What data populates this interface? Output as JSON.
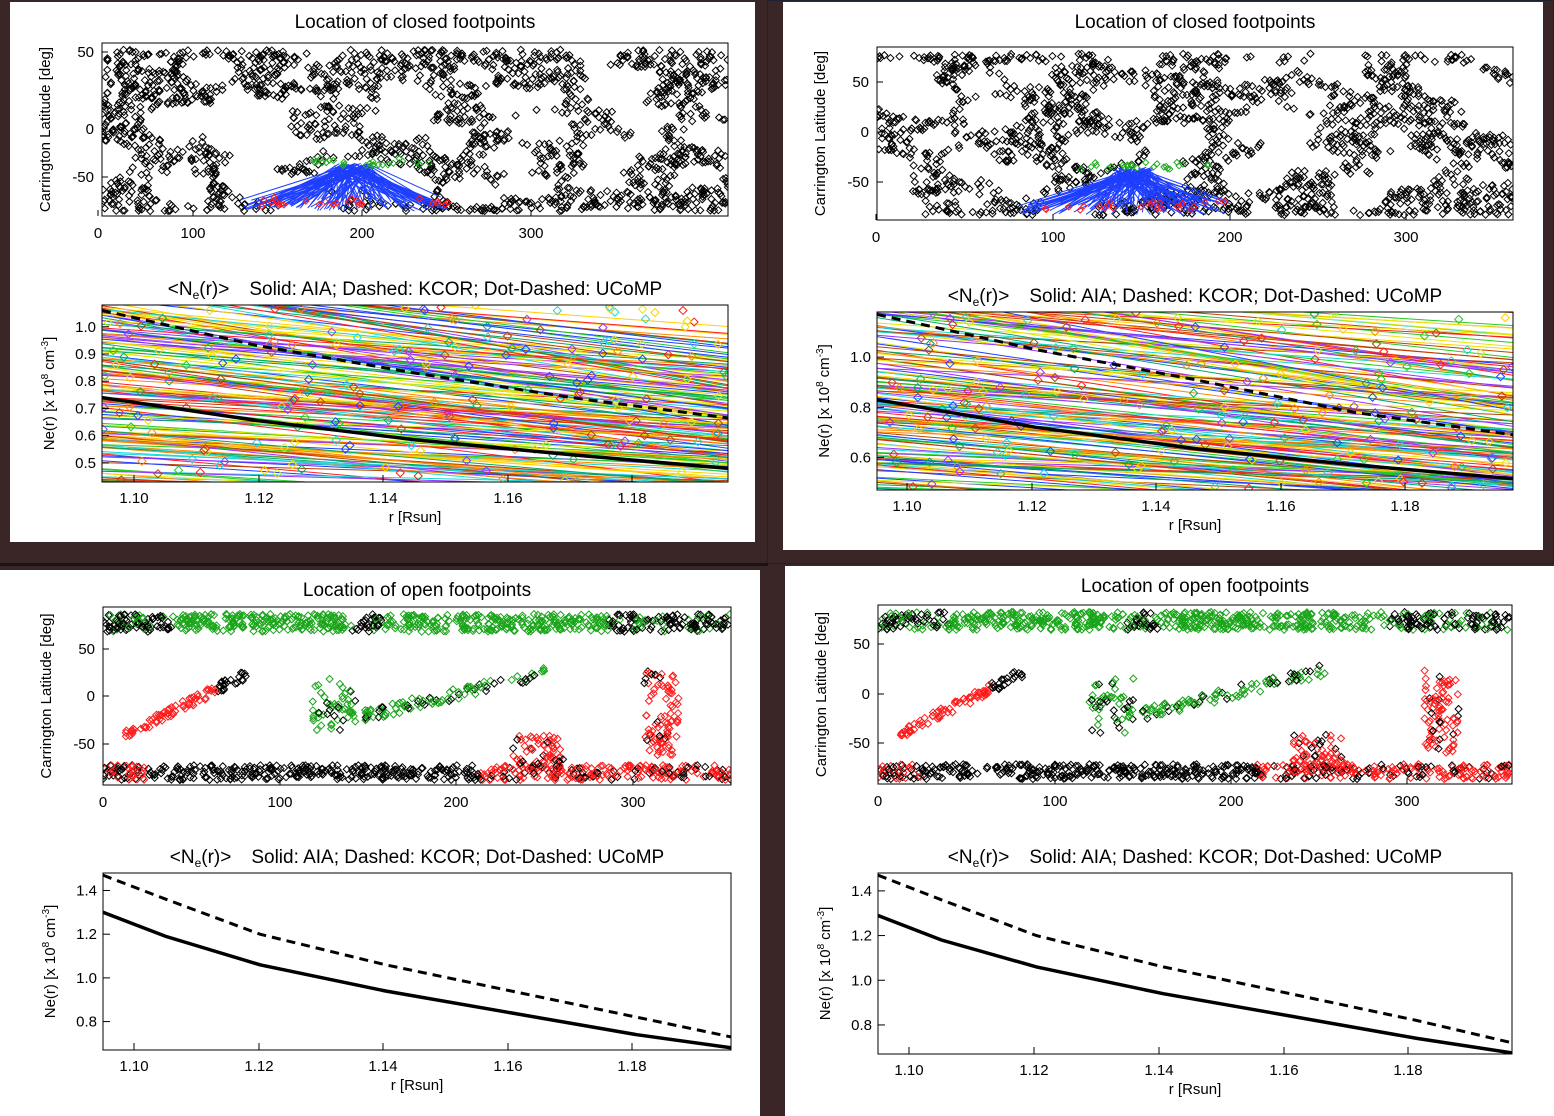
{
  "windows": [
    {
      "id": "top-left",
      "map": {
        "title": "Location of closed footpoints",
        "ylabel": "Carrington Latitude [deg]",
        "xticks": [
          "0",
          "100",
          "200",
          "300"
        ],
        "yticks": [
          "50",
          "0",
          "-50"
        ]
      },
      "profile": {
        "title_parts": [
          "<N",
          "e",
          "(r)>",
          "Solid: AIA; Dashed: KCOR; Dot-Dashed: UCoMP"
        ],
        "xlabel": "r [Rsun]",
        "ylabel_parts": [
          "Ne(r) [x 10",
          "8",
          "cm",
          "-3",
          "]"
        ],
        "xticks": [
          "1.10",
          "1.12",
          "1.14",
          "1.16",
          "1.18"
        ],
        "yticks": [
          "1.0",
          "0.9",
          "0.8",
          "0.7",
          "0.6",
          "0.5"
        ]
      }
    },
    {
      "id": "top-right",
      "map": {
        "title": "Location of closed footpoints",
        "ylabel": "Carrington Latitude [deg]",
        "xticks": [
          "0",
          "100",
          "200",
          "300"
        ],
        "yticks": [
          "50",
          "0",
          "-50"
        ]
      },
      "profile": {
        "title_parts": [
          "<N",
          "e",
          "(r)>",
          "Solid: AIA; Dashed: KCOR; Dot-Dashed: UCoMP"
        ],
        "xlabel": "r [Rsun]",
        "ylabel_parts": [
          "Ne(r) [x 10",
          "8",
          "cm",
          "-3",
          "]"
        ],
        "xticks": [
          "1.10",
          "1.12",
          "1.14",
          "1.16",
          "1.18"
        ],
        "yticks": [
          "1.0",
          "0.8",
          "0.6"
        ]
      }
    },
    {
      "id": "bottom-left",
      "map": {
        "title": "Location of open footpoints",
        "ylabel": "Carrington Latitude [deg]",
        "xticks": [
          "0",
          "100",
          "200",
          "300"
        ],
        "yticks": [
          "50",
          "0",
          "-50"
        ]
      },
      "profile": {
        "title_parts": [
          "<N",
          "e",
          "(r)>",
          "Solid: AIA; Dashed: KCOR; Dot-Dashed: UCoMP"
        ],
        "xlabel": "r [Rsun]",
        "ylabel_parts": [
          "Ne(r) [x 10",
          "8",
          "cm",
          "-3",
          "]"
        ],
        "xticks": [
          "1.10",
          "1.12",
          "1.14",
          "1.16",
          "1.18"
        ],
        "yticks": [
          "1.4",
          "1.2",
          "1.0",
          "0.8"
        ]
      }
    },
    {
      "id": "bottom-right",
      "map": {
        "title": "Location of open footpoints",
        "ylabel": "Carrington Latitude [deg]",
        "xticks": [
          "0",
          "100",
          "200",
          "300"
        ],
        "yticks": [
          "50",
          "0",
          "-50"
        ]
      },
      "profile": {
        "title_parts": [
          "<N",
          "e",
          "(r)>",
          "Solid: AIA; Dashed: KCOR; Dot-Dashed: UCoMP"
        ],
        "xlabel": "r [Rsun]",
        "ylabel_parts": [
          "Ne(r) [x 10",
          "8",
          "cm",
          "-3",
          "]"
        ],
        "xticks": [
          "1.10",
          "1.12",
          "1.14",
          "1.16",
          "1.18"
        ],
        "yticks": [
          "1.4",
          "1.2",
          "1.0",
          "0.8"
        ]
      }
    }
  ],
  "chart_data": [
    {
      "panel": "top-left-map",
      "type": "scatter",
      "title": "Location of closed footpoints",
      "xlabel": "",
      "ylabel": "Carrington Latitude [deg]",
      "xlim": [
        0,
        360
      ],
      "ylim": [
        -90,
        90
      ],
      "marker": "diamond",
      "colors": {
        "footpoints": "#000000",
        "field_lines": "#1f3fff",
        "green": "#22aa22",
        "red": "#ff1a1a"
      },
      "colored_region": {
        "lon": [
          80,
          200
        ],
        "lat": [
          -85,
          -30
        ]
      }
    },
    {
      "panel": "top-left-profile",
      "type": "line",
      "title": "<Ne(r)>  Solid: AIA; Dashed: KCOR; Dot-Dashed: UCoMP",
      "xlabel": "r [Rsun]",
      "ylabel": "Ne(r) [x 10^8 cm^-3]",
      "xlim": [
        1.095,
        1.195
      ],
      "ylim": [
        0.43,
        1.08
      ],
      "series": [
        {
          "style": "solid",
          "x": [
            1.095,
            1.12,
            1.145,
            1.17,
            1.195
          ],
          "y": [
            0.74,
            0.655,
            0.585,
            0.53,
            0.48
          ]
        },
        {
          "style": "dashed",
          "x": [
            1.095,
            1.12,
            1.145,
            1.17,
            1.195
          ],
          "y": [
            1.06,
            0.93,
            0.83,
            0.74,
            0.665
          ]
        }
      ]
    },
    {
      "panel": "top-right-map",
      "type": "scatter",
      "title": "Location of closed footpoints",
      "xlabel": "",
      "ylabel": "Carrington Latitude [deg]",
      "xlim": [
        0,
        360
      ],
      "ylim": [
        -90,
        90
      ],
      "marker": "diamond",
      "colored_region": {
        "lon": [
          80,
          200
        ],
        "lat": [
          -85,
          -30
        ]
      }
    },
    {
      "panel": "top-right-profile",
      "type": "line",
      "title": "<Ne(r)>  Solid: AIA; Dashed: KCOR; Dot-Dashed: UCoMP",
      "xlabel": "r [Rsun]",
      "ylabel": "Ne(r) [x 10^8 cm^-3]",
      "xlim": [
        1.095,
        1.195
      ],
      "ylim": [
        0.47,
        1.18
      ],
      "series": [
        {
          "style": "solid",
          "x": [
            1.095,
            1.12,
            1.145,
            1.17,
            1.195
          ],
          "y": [
            0.83,
            0.72,
            0.635,
            0.57,
            0.515
          ]
        },
        {
          "style": "dashed",
          "x": [
            1.095,
            1.12,
            1.145,
            1.17,
            1.195
          ],
          "y": [
            1.17,
            1.03,
            0.91,
            0.78,
            0.69
          ]
        }
      ]
    },
    {
      "panel": "bottom-left-map",
      "type": "scatter",
      "title": "Location of open footpoints",
      "xlabel": "",
      "ylabel": "Carrington Latitude [deg]",
      "xlim": [
        0,
        360
      ],
      "ylim": [
        -90,
        90
      ],
      "marker": "diamond"
    },
    {
      "panel": "bottom-left-profile",
      "type": "line",
      "title": "<Ne(r)>  Solid: AIA; Dashed: KCOR; Dot-Dashed: UCoMP",
      "xlabel": "r [Rsun]",
      "ylabel": "Ne(r) [x 10^8 cm^-3]",
      "xlim": [
        1.095,
        1.195
      ],
      "ylim": [
        0.67,
        1.48
      ],
      "series": [
        {
          "style": "solid",
          "x": [
            1.095,
            1.105,
            1.12,
            1.14,
            1.16,
            1.18,
            1.195
          ],
          "y": [
            1.3,
            1.19,
            1.06,
            0.94,
            0.84,
            0.74,
            0.68
          ]
        },
        {
          "style": "dashed",
          "x": [
            1.095,
            1.105,
            1.12,
            1.14,
            1.16,
            1.18,
            1.195
          ],
          "y": [
            1.47,
            1.36,
            1.2,
            1.06,
            0.94,
            0.82,
            0.73
          ]
        }
      ]
    },
    {
      "panel": "bottom-right-map",
      "type": "scatter",
      "title": "Location of open footpoints",
      "xlabel": "",
      "ylabel": "Carrington Latitude [deg]",
      "xlim": [
        0,
        360
      ],
      "ylim": [
        -90,
        90
      ],
      "marker": "diamond"
    },
    {
      "panel": "bottom-right-profile",
      "type": "line",
      "title": "<Ne(r)>  Solid: AIA; Dashed: KCOR; Dot-Dashed: UCoMP",
      "xlabel": "r [Rsun]",
      "ylabel": "Ne(r) [x 10^8 cm^-3]",
      "xlim": [
        1.095,
        1.195
      ],
      "ylim": [
        0.67,
        1.48
      ],
      "series": [
        {
          "style": "solid",
          "x": [
            1.095,
            1.105,
            1.12,
            1.14,
            1.16,
            1.18,
            1.195
          ],
          "y": [
            1.29,
            1.18,
            1.06,
            0.94,
            0.84,
            0.74,
            0.675
          ]
        },
        {
          "style": "dashed",
          "x": [
            1.095,
            1.105,
            1.12,
            1.14,
            1.16,
            1.18,
            1.195
          ],
          "y": [
            1.47,
            1.36,
            1.2,
            1.06,
            0.94,
            0.82,
            0.72
          ]
        }
      ]
    }
  ]
}
